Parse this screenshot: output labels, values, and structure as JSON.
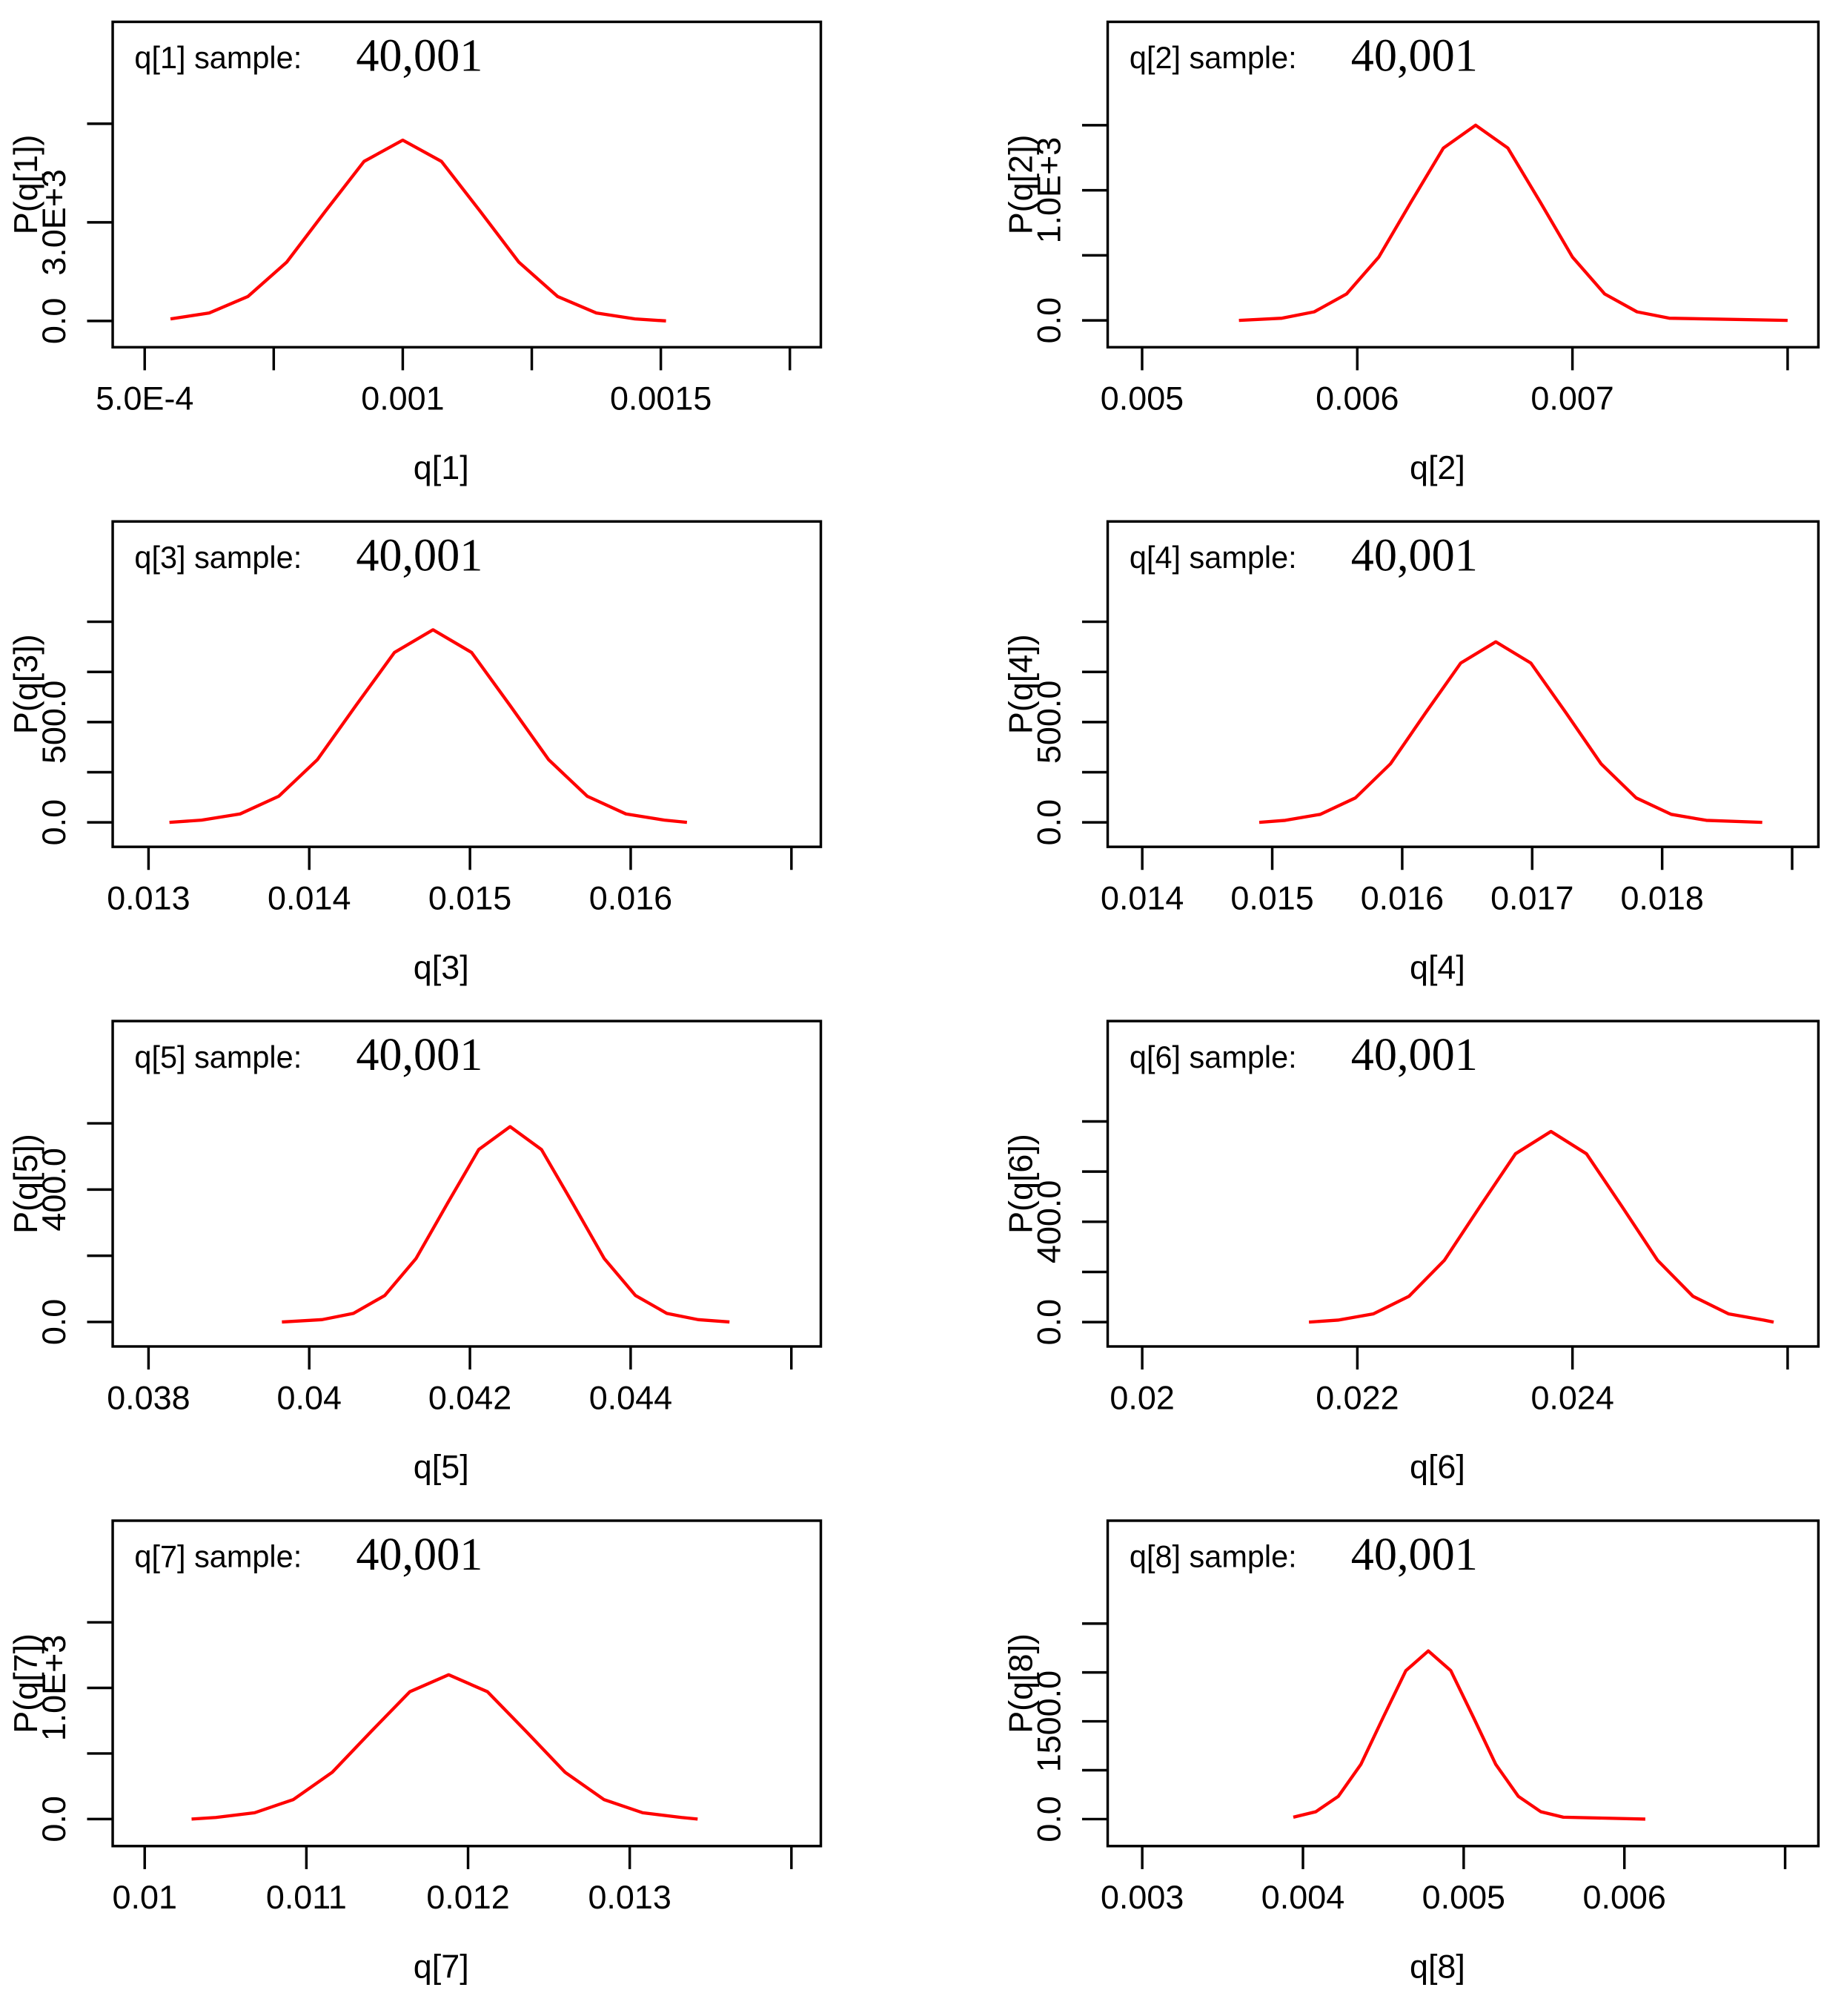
{
  "chart_data": [
    {
      "type": "line",
      "title": "q[1] sample:",
      "annotation": "40,001",
      "xlabel": "q[1]",
      "ylabel": "P(q[1])",
      "color": "#ff0000",
      "x": [
        0.00055,
        0.000625,
        0.0007,
        0.000775,
        0.00085,
        0.000925,
        0.001,
        0.001075,
        0.00115,
        0.001225,
        0.0013,
        0.001375,
        0.00145,
        0.00151
      ],
      "values": [
        61,
        241,
        744,
        1786,
        3336,
        4854,
        5500,
        4854,
        3336,
        1786,
        744,
        241,
        61,
        0
      ],
      "xlim": [
        0.000438,
        0.00181
      ],
      "ylim": [
        -800,
        9100
      ],
      "xticks": [
        {
          "value": 0.0005,
          "label": "5.0E-4"
        },
        0.001,
        0.0015
      ],
      "xminorticks": [
        0.00075,
        0.00125,
        0.00175
      ],
      "yticks": [
        {
          "value": 0,
          "label": "0.0"
        },
        {
          "value": 3000,
          "label": "3.0E+3"
        }
      ],
      "yminorticks": [
        6000
      ]
    },
    {
      "type": "line",
      "title": "q[2] sample:",
      "annotation": "40,001",
      "xlabel": "q[2]",
      "ylabel": "P(q[2])",
      "color": "#ff0000",
      "x": [
        0.00545,
        0.00565,
        0.0058,
        0.00595,
        0.0061,
        0.00625,
        0.0064,
        0.00655,
        0.0067,
        0.00685,
        0.007,
        0.00715,
        0.0073,
        0.00745,
        0.008
      ],
      "values": [
        0,
        17,
        66,
        203,
        487,
        910,
        1324,
        1500,
        1324,
        910,
        487,
        203,
        66,
        17,
        0
      ],
      "xlim": [
        0.00484,
        0.008143
      ],
      "ylim": [
        -206,
        2294
      ],
      "xticks": [
        0.005,
        0.006,
        0.007
      ],
      "xminorticks": [
        0.008
      ],
      "yticks": [
        {
          "value": 0,
          "label": "0.0"
        },
        {
          "value": 1000,
          "label": "1.0E+3"
        }
      ],
      "yminorticks": [
        500,
        1500
      ]
    },
    {
      "type": "line",
      "title": "q[3] sample:",
      "annotation": "40,001",
      "xlabel": "q[3]",
      "ylabel": "P(q[3])",
      "color": "#ff0000",
      "x": [
        0.01313,
        0.01333,
        0.01357,
        0.01381,
        0.01405,
        0.01429,
        0.01453,
        0.01477,
        0.01501,
        0.01525,
        0.01549,
        0.01573,
        0.01597,
        0.01621,
        0.01635
      ],
      "values": [
        0,
        11,
        42,
        130,
        312,
        582,
        847,
        960,
        847,
        582,
        312,
        130,
        42,
        11,
        0
      ],
      "xlim": [
        0.012777,
        0.017183
      ],
      "ylim": [
        -122,
        1500
      ],
      "xticks": [
        0.013,
        0.014,
        0.015,
        0.016
      ],
      "xminorticks": [
        0.017
      ],
      "yticks": [
        {
          "value": 0,
          "label": "0.0"
        },
        {
          "value": 500,
          "label": "500.0"
        }
      ],
      "yminorticks": [
        250,
        750,
        1000
      ]
    },
    {
      "type": "line",
      "title": "q[4] sample:",
      "annotation": "40,001",
      "xlabel": "q[4]",
      "ylabel": "P(q[4])",
      "color": "#ff0000",
      "x": [
        0.0149,
        0.0151,
        0.01537,
        0.01564,
        0.01591,
        0.01618,
        0.01645,
        0.01672,
        0.01699,
        0.01726,
        0.01753,
        0.0178,
        0.01807,
        0.01834,
        0.01877
      ],
      "values": [
        0,
        10,
        40,
        122,
        292,
        546,
        794,
        900,
        794,
        546,
        292,
        122,
        40,
        10,
        0
      ],
      "xlim": [
        0.013734,
        0.019202
      ],
      "ylim": [
        -122,
        1500
      ],
      "xticks": [
        0.014,
        0.015,
        0.016,
        0.017,
        0.018
      ],
      "xminorticks": [
        0.019
      ],
      "yticks": [
        {
          "value": 0,
          "label": "0.0"
        },
        {
          "value": 500,
          "label": "500.0"
        }
      ],
      "yminorticks": [
        250,
        750,
        1000
      ]
    },
    {
      "type": "line",
      "title": "q[5] sample:",
      "annotation": "40,001",
      "xlabel": "q[5]",
      "ylabel": "P(q[5])",
      "color": "#ff0000",
      "x": [
        0.03966,
        0.04016,
        0.04055,
        0.04094,
        0.04133,
        0.04172,
        0.04211,
        0.0425,
        0.04289,
        0.04328,
        0.04367,
        0.04406,
        0.04445,
        0.04484,
        0.04523
      ],
      "values": [
        0,
        7,
        26,
        80,
        192,
        358,
        521,
        590,
        521,
        358,
        192,
        80,
        26,
        7,
        0
      ],
      "xlim": [
        0.037554,
        0.046367
      ],
      "ylim": [
        -74,
        909
      ],
      "xticks": [
        0.038,
        0.04,
        0.042,
        0.044
      ],
      "xminorticks": [
        0.046
      ],
      "yticks": [
        {
          "value": 0,
          "label": "0.0"
        },
        {
          "value": 400,
          "label": "400.0"
        }
      ],
      "yminorticks": [
        200,
        600
      ]
    },
    {
      "type": "line",
      "title": "q[6] sample:",
      "annotation": "40,001",
      "xlabel": "q[6]",
      "ylabel": "P(q[6])",
      "color": "#ff0000",
      "x": [
        0.02155,
        0.02182,
        0.02215,
        0.02248,
        0.02281,
        0.02314,
        0.02347,
        0.0238,
        0.02413,
        0.02446,
        0.02479,
        0.02512,
        0.02545,
        0.02578,
        0.02587
      ],
      "values": [
        0,
        8,
        33,
        103,
        247,
        461,
        671,
        760,
        671,
        461,
        247,
        103,
        33,
        8,
        0
      ],
      "xlim": [
        0.019679,
        0.026286
      ],
      "ylim": [
        -97,
        1200
      ],
      "xticks": [
        0.02,
        0.022,
        0.024
      ],
      "xminorticks": [
        0.026
      ],
      "yticks": [
        {
          "value": 0,
          "label": "0.0"
        },
        {
          "value": 400,
          "label": "400.0"
        }
      ],
      "yminorticks": [
        200,
        600,
        800
      ]
    },
    {
      "type": "line",
      "title": "q[7] sample:",
      "annotation": "40,001",
      "xlabel": "q[7]",
      "ylabel": "P(q[7])",
      "color": "#ff0000",
      "x": [
        0.01029,
        0.01044,
        0.01068,
        0.01092,
        0.01116,
        0.0114,
        0.01164,
        0.01188,
        0.01212,
        0.01236,
        0.0126,
        0.01284,
        0.01308,
        0.01332,
        0.01342
      ],
      "values": [
        0,
        12,
        48,
        149,
        357,
        667,
        971,
        1100,
        971,
        667,
        357,
        149,
        48,
        12,
        0
      ],
      "xlim": [
        0.009802,
        0.014182
      ],
      "ylim": [
        -206,
        2275
      ],
      "xticks": [
        0.01,
        0.011,
        0.012,
        0.013
      ],
      "xminorticks": [
        0.014
      ],
      "yticks": [
        {
          "value": 0,
          "label": "0.0"
        },
        {
          "value": 1000,
          "label": "1.0E+3"
        }
      ],
      "yminorticks": [
        500,
        1500
      ]
    },
    {
      "type": "line",
      "title": "q[8] sample:",
      "annotation": "40,001",
      "xlabel": "q[8]",
      "ylabel": "P(q[8])",
      "color": "#ff0000",
      "x": [
        0.00394,
        0.00408,
        0.00422,
        0.00436,
        0.0045,
        0.00464,
        0.00478,
        0.00492,
        0.00506,
        0.0052,
        0.00534,
        0.00548,
        0.00562,
        0.00613
      ],
      "values": [
        29,
        113,
        349,
        838,
        1565,
        2277,
        2580,
        2277,
        1565,
        838,
        349,
        113,
        29,
        0
      ],
      "xlim": [
        0.002785,
        0.007207
      ],
      "ylim": [
        -414,
        4579
      ],
      "xticks": [
        0.003,
        0.004,
        0.005,
        0.006
      ],
      "xminorticks": [
        0.007
      ],
      "yticks": [
        {
          "value": 0,
          "label": "0.0"
        },
        {
          "value": 1500,
          "label": "1500.0"
        }
      ],
      "yminorticks": [
        750,
        2250,
        3000
      ]
    }
  ]
}
